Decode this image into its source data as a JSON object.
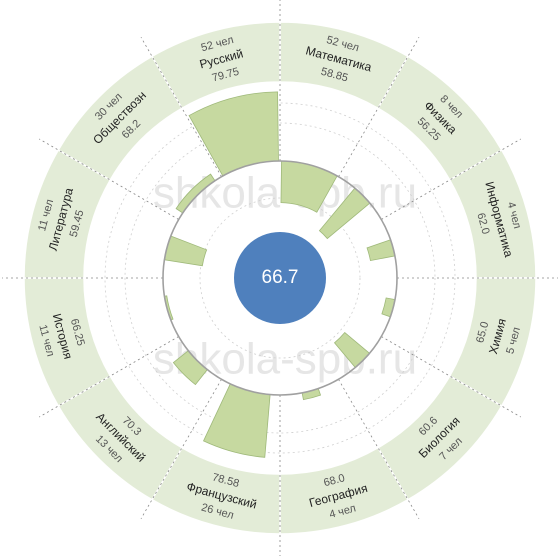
{
  "watermark": "shkola-spb.ru",
  "center_value": "66.7",
  "colors": {
    "ring": "#e3ecd7",
    "ring_stroke": "#ffffff",
    "bar": "#c6d9a0",
    "bar_stroke": "#9fb97a",
    "center": "#4f80bd",
    "axis": "#888888",
    "circle": "#a0a0a0"
  },
  "chart_data": {
    "type": "radial-bar",
    "title": "",
    "overall_average": 66.7,
    "baseline_value": 66.7,
    "segments": [
      {
        "subject": "Математика",
        "count": 52,
        "count_label": "52 чел",
        "score": 58.85,
        "score_label": "58.85"
      },
      {
        "subject": "Физика",
        "count": 8,
        "count_label": "8 чел",
        "score": 56.25,
        "score_label": "56.25"
      },
      {
        "subject": "Информатика",
        "count": 4,
        "count_label": "4 чел",
        "score": 62.0,
        "score_label": "62.0"
      },
      {
        "subject": "Химия",
        "count": 5,
        "count_label": "5 чел",
        "score": 65.0,
        "score_label": "65.0"
      },
      {
        "subject": "Биология",
        "count": 7,
        "count_label": "7 чел",
        "score": 60.6,
        "score_label": "60.6"
      },
      {
        "subject": "География",
        "count": 4,
        "count_label": "4 чел",
        "score": 68.0,
        "score_label": "68.0"
      },
      {
        "subject": "Французский",
        "count": 26,
        "count_label": "26 чел",
        "score": 78.58,
        "score_label": "78.58"
      },
      {
        "subject": "Английский",
        "count": 13,
        "count_label": "13 чел",
        "score": 70.3,
        "score_label": "70.3"
      },
      {
        "subject": "История",
        "count": 11,
        "count_label": "11 чел",
        "score": 66.25,
        "score_label": "66.25"
      },
      {
        "subject": "Литература",
        "count": 11,
        "count_label": "11 чел",
        "score": 59.45,
        "score_label": "59.45"
      },
      {
        "subject": "Обществозн",
        "count": 30,
        "count_label": "30 чел",
        "score": 68.2,
        "score_label": "68.2"
      },
      {
        "subject": "Русский",
        "count": 52,
        "count_label": "52 чел",
        "score": 79.75,
        "score_label": "79.75"
      }
    ]
  }
}
